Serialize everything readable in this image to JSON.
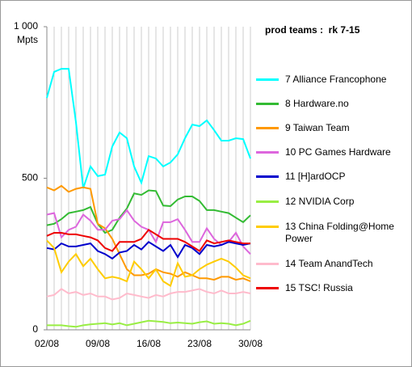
{
  "chart_data": {
    "type": "line",
    "title": "prod teams :  rk 7-15",
    "y_label": "Mpts",
    "categories": [
      "02/08",
      null,
      null,
      null,
      null,
      null,
      null,
      "09/08",
      null,
      null,
      null,
      null,
      null,
      null,
      "16/08",
      null,
      null,
      null,
      null,
      null,
      null,
      "23/08",
      null,
      null,
      null,
      null,
      null,
      null,
      "30/08"
    ],
    "ylim": [
      0,
      1000
    ],
    "yticks": [
      0,
      500,
      {
        "value": 1000,
        "label": "1 000"
      }
    ],
    "grid": true,
    "series": [
      {
        "name": "7 Alliance Francophone",
        "color": "#00ffff",
        "values": [
          765,
          851,
          861,
          861,
          685,
          467,
          539,
          507,
          512,
          605,
          651,
          632,
          539,
          485,
          573,
          565,
          539,
          552,
          579,
          632,
          677,
          672,
          691,
          659,
          624,
          624,
          632,
          629,
          565
        ]
      },
      {
        "name": "8 Hardware.no",
        "color": "#33bb33",
        "values": [
          345,
          350,
          365,
          385,
          390,
          395,
          405,
          350,
          320,
          330,
          370,
          400,
          450,
          445,
          460,
          458,
          410,
          408,
          430,
          440,
          440,
          425,
          395,
          395,
          390,
          385,
          370,
          355,
          378
        ]
      },
      {
        "name": "9 Taiwan Team",
        "color": "#ff9900",
        "values": [
          470,
          460,
          475,
          455,
          465,
          470,
          465,
          350,
          335,
          300,
          250,
          200,
          180,
          180,
          185,
          200,
          190,
          185,
          175,
          190,
          180,
          170,
          170,
          165,
          175,
          175,
          165,
          170,
          160
        ]
      },
      {
        "name": "10 PC Games Hardware",
        "color": "#dd66dd",
        "values": [
          380,
          385,
          305,
          330,
          340,
          380,
          360,
          330,
          330,
          360,
          365,
          395,
          360,
          340,
          330,
          290,
          355,
          355,
          365,
          330,
          290,
          290,
          335,
          300,
          280,
          290,
          320,
          275,
          250
        ]
      },
      {
        "name": "11 [H]ardOCP",
        "color": "#0000cc",
        "values": [
          270,
          265,
          285,
          275,
          275,
          280,
          285,
          260,
          250,
          235,
          255,
          260,
          280,
          265,
          290,
          275,
          260,
          280,
          240,
          280,
          270,
          250,
          280,
          275,
          280,
          290,
          285,
          280,
          285
        ]
      },
      {
        "name": "12 NVIDIA Corp",
        "color": "#99ee44",
        "values": [
          15,
          15,
          15,
          12,
          10,
          15,
          18,
          20,
          22,
          18,
          22,
          15,
          20,
          25,
          30,
          28,
          26,
          22,
          24,
          22,
          20,
          25,
          28,
          20,
          22,
          20,
          15,
          20,
          30
        ]
      },
      {
        "name": "13 China Folding@Home Power",
        "color": "#ffcc00",
        "values": [
          295,
          270,
          190,
          225,
          250,
          210,
          235,
          200,
          170,
          175,
          170,
          160,
          225,
          200,
          170,
          200,
          160,
          145,
          220,
          175,
          180,
          200,
          215,
          225,
          235,
          225,
          205,
          180,
          170
        ]
      },
      {
        "name": "14 Team AnandTech",
        "color": "#ffbbcc",
        "values": [
          110,
          115,
          135,
          120,
          125,
          115,
          120,
          110,
          110,
          100,
          105,
          120,
          115,
          110,
          105,
          115,
          110,
          120,
          125,
          125,
          130,
          135,
          125,
          120,
          130,
          120,
          120,
          125,
          120
        ]
      },
      {
        "name": "15 TSC! Russia",
        "color": "#ee0000",
        "values": [
          310,
          320,
          320,
          315,
          315,
          310,
          305,
          295,
          270,
          260,
          290,
          290,
          290,
          300,
          330,
          315,
          300,
          300,
          300,
          290,
          275,
          260,
          295,
          285,
          290,
          295,
          290,
          285,
          285
        ]
      }
    ]
  }
}
